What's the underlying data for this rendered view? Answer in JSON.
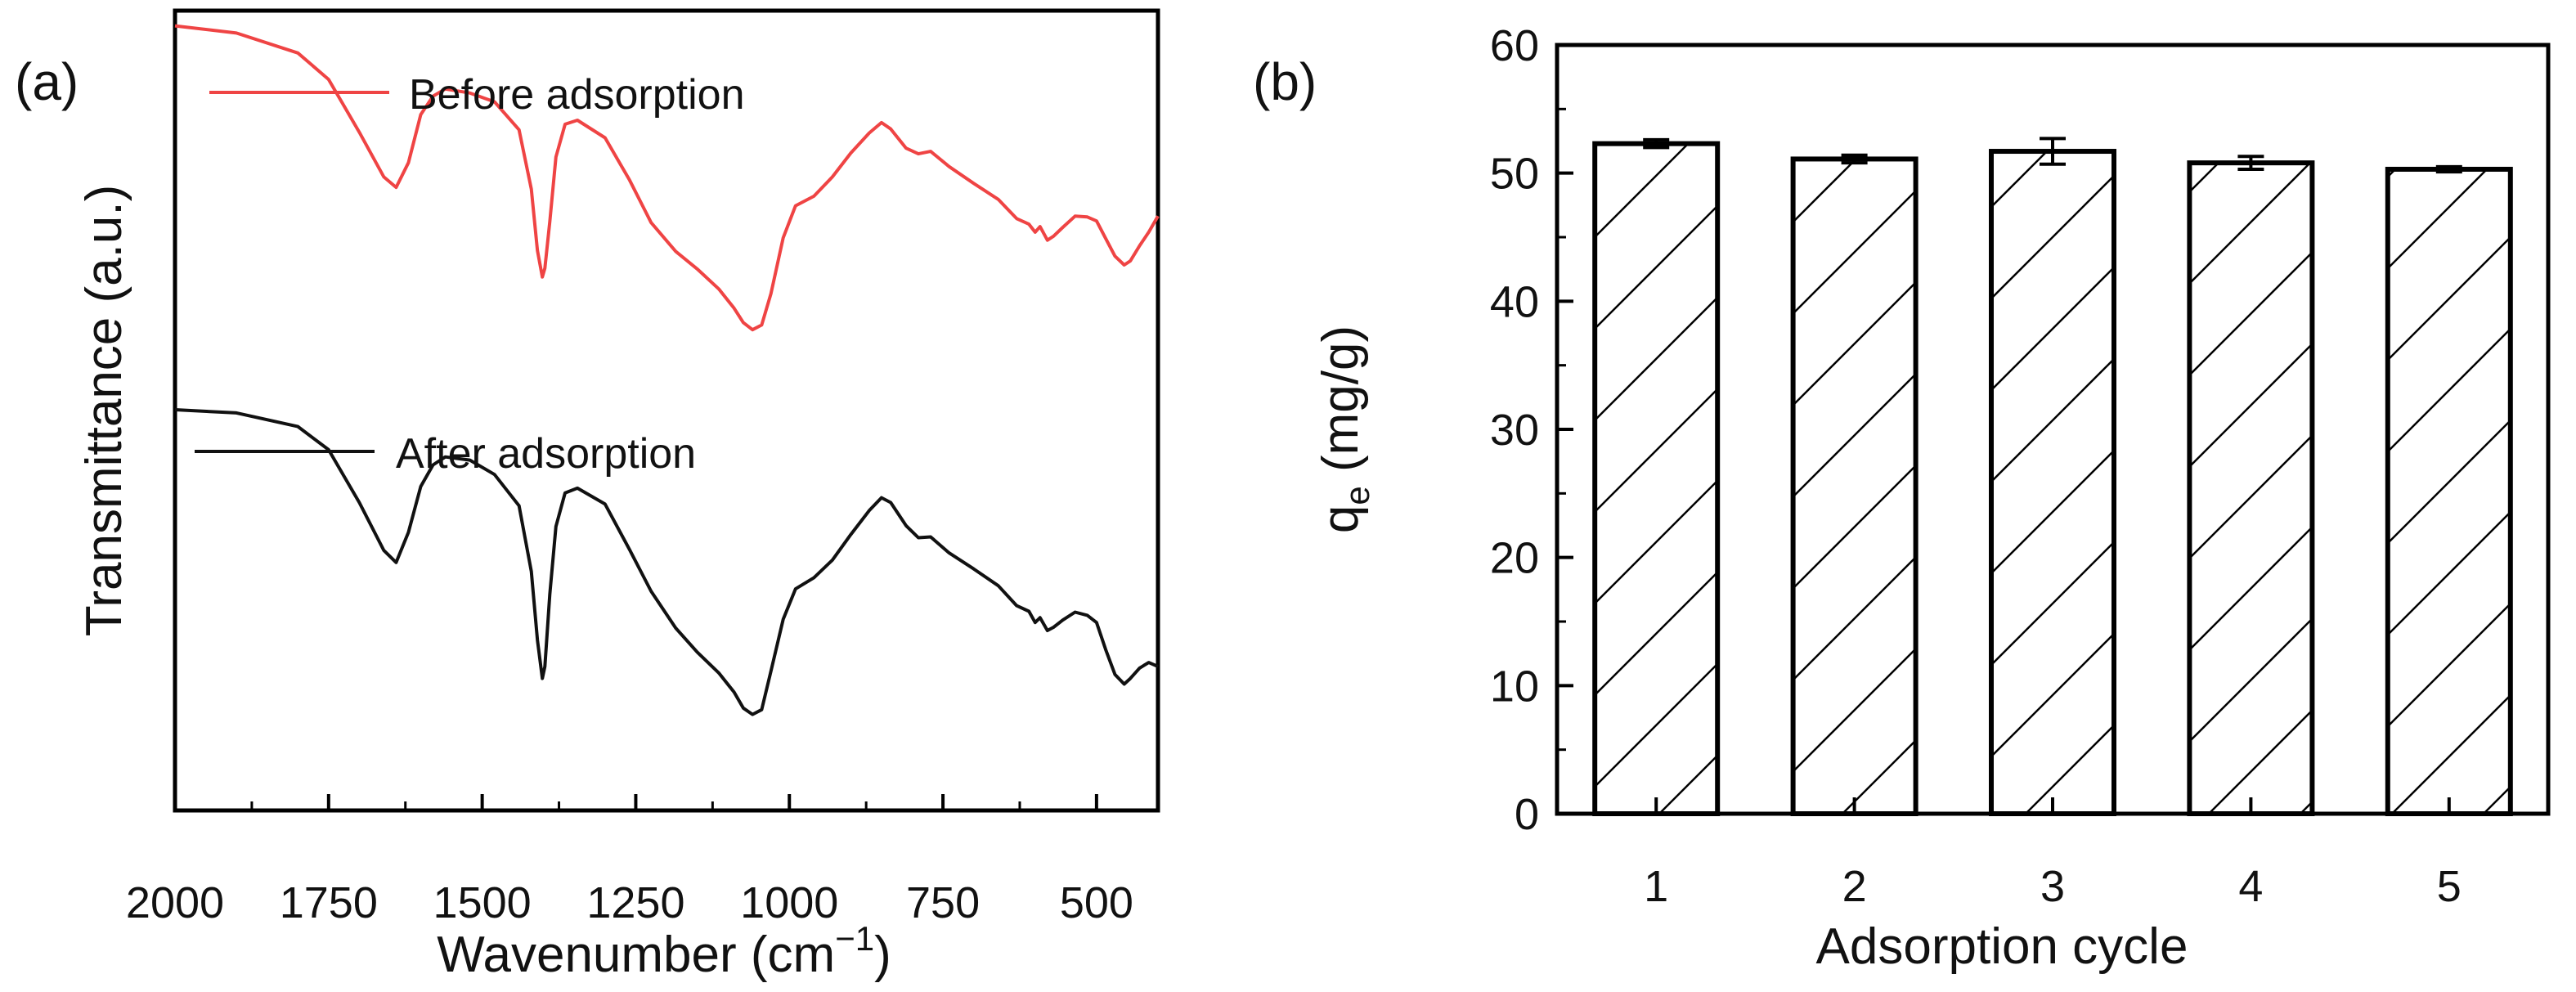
{
  "chart_data": [
    {
      "panel_label": "(a)",
      "type": "line",
      "xlabel_main": "Wavenumber (cm",
      "xlabel_sup": "−1",
      "xlabel_close": ")",
      "ylabel": "Transmittance (a.u.)",
      "xlim": [
        2000,
        400
      ],
      "x_reversed": true,
      "ylim": [
        0,
        1
      ],
      "y_ticks_shown": false,
      "x_ticks": [
        2000,
        1750,
        1500,
        1250,
        1000,
        750,
        500
      ],
      "series": [
        {
          "name": "Before adsorption",
          "color": "#ef4444",
          "points": [
            [
              2000,
              0.981
            ],
            [
              1900,
              0.972
            ],
            [
              1800,
              0.947
            ],
            [
              1750,
              0.914
            ],
            [
              1700,
              0.848
            ],
            [
              1660,
              0.792
            ],
            [
              1640,
              0.779
            ],
            [
              1620,
              0.81
            ],
            [
              1600,
              0.87
            ],
            [
              1580,
              0.893
            ],
            [
              1560,
              0.902
            ],
            [
              1520,
              0.897
            ],
            [
              1480,
              0.886
            ],
            [
              1440,
              0.851
            ],
            [
              1420,
              0.777
            ],
            [
              1410,
              0.7
            ],
            [
              1402,
              0.667
            ],
            [
              1398,
              0.678
            ],
            [
              1390,
              0.736
            ],
            [
              1380,
              0.817
            ],
            [
              1365,
              0.858
            ],
            [
              1345,
              0.863
            ],
            [
              1300,
              0.841
            ],
            [
              1260,
              0.788
            ],
            [
              1225,
              0.735
            ],
            [
              1185,
              0.699
            ],
            [
              1150,
              0.677
            ],
            [
              1115,
              0.652
            ],
            [
              1090,
              0.628
            ],
            [
              1075,
              0.61
            ],
            [
              1060,
              0.601
            ],
            [
              1045,
              0.607
            ],
            [
              1030,
              0.646
            ],
            [
              1010,
              0.716
            ],
            [
              990,
              0.756
            ],
            [
              960,
              0.768
            ],
            [
              930,
              0.792
            ],
            [
              900,
              0.822
            ],
            [
              870,
              0.847
            ],
            [
              850,
              0.86
            ],
            [
              835,
              0.852
            ],
            [
              810,
              0.828
            ],
            [
              790,
              0.821
            ],
            [
              770,
              0.824
            ],
            [
              740,
              0.805
            ],
            [
              700,
              0.784
            ],
            [
              660,
              0.764
            ],
            [
              630,
              0.74
            ],
            [
              610,
              0.733
            ],
            [
              600,
              0.723
            ],
            [
              592,
              0.73
            ],
            [
              580,
              0.713
            ],
            [
              570,
              0.718
            ],
            [
              555,
              0.729
            ],
            [
              535,
              0.743
            ],
            [
              515,
              0.742
            ],
            [
              500,
              0.737
            ],
            [
              485,
              0.715
            ],
            [
              470,
              0.693
            ],
            [
              455,
              0.682
            ],
            [
              445,
              0.687
            ],
            [
              430,
              0.706
            ],
            [
              415,
              0.723
            ],
            [
              400,
              0.743
            ]
          ]
        },
        {
          "name": "After adsorption",
          "color": "#111111",
          "points": [
            [
              2000,
              0.501
            ],
            [
              1900,
              0.497
            ],
            [
              1800,
              0.48
            ],
            [
              1750,
              0.451
            ],
            [
              1700,
              0.385
            ],
            [
              1660,
              0.325
            ],
            [
              1640,
              0.31
            ],
            [
              1620,
              0.348
            ],
            [
              1600,
              0.405
            ],
            [
              1580,
              0.432
            ],
            [
              1560,
              0.442
            ],
            [
              1520,
              0.438
            ],
            [
              1480,
              0.42
            ],
            [
              1440,
              0.381
            ],
            [
              1420,
              0.299
            ],
            [
              1410,
              0.213
            ],
            [
              1402,
              0.165
            ],
            [
              1398,
              0.18
            ],
            [
              1390,
              0.27
            ],
            [
              1380,
              0.355
            ],
            [
              1365,
              0.397
            ],
            [
              1345,
              0.403
            ],
            [
              1300,
              0.383
            ],
            [
              1260,
              0.326
            ],
            [
              1225,
              0.274
            ],
            [
              1185,
              0.228
            ],
            [
              1150,
              0.198
            ],
            [
              1115,
              0.172
            ],
            [
              1090,
              0.148
            ],
            [
              1075,
              0.128
            ],
            [
              1060,
              0.12
            ],
            [
              1045,
              0.126
            ],
            [
              1030,
              0.174
            ],
            [
              1010,
              0.239
            ],
            [
              990,
              0.277
            ],
            [
              960,
              0.291
            ],
            [
              930,
              0.313
            ],
            [
              900,
              0.345
            ],
            [
              870,
              0.375
            ],
            [
              850,
              0.391
            ],
            [
              835,
              0.385
            ],
            [
              810,
              0.356
            ],
            [
              790,
              0.341
            ],
            [
              770,
              0.342
            ],
            [
              740,
              0.322
            ],
            [
              700,
              0.302
            ],
            [
              660,
              0.281
            ],
            [
              630,
              0.256
            ],
            [
              610,
              0.249
            ],
            [
              600,
              0.235
            ],
            [
              592,
              0.241
            ],
            [
              580,
              0.225
            ],
            [
              570,
              0.229
            ],
            [
              555,
              0.238
            ],
            [
              535,
              0.248
            ],
            [
              515,
              0.244
            ],
            [
              500,
              0.235
            ],
            [
              485,
              0.201
            ],
            [
              470,
              0.17
            ],
            [
              455,
              0.158
            ],
            [
              445,
              0.165
            ],
            [
              430,
              0.178
            ],
            [
              415,
              0.185
            ],
            [
              400,
              0.18
            ]
          ]
        }
      ]
    },
    {
      "panel_label": "(b)",
      "type": "bar",
      "xlabel": "Adsorption cycle",
      "ylabel_main": "q",
      "ylabel_sub": "e",
      "ylabel_unit": " (mg/g)",
      "categories": [
        "1",
        "2",
        "3",
        "4",
        "5"
      ],
      "values": [
        52.3,
        51.1,
        51.7,
        50.8,
        50.3
      ],
      "errors": [
        0.3,
        0.3,
        1.0,
        0.5,
        0.2
      ],
      "ylim": [
        0,
        60
      ],
      "y_ticks": [
        0,
        10,
        20,
        30,
        40,
        50,
        60
      ],
      "bar_fill": "hatched",
      "bar_color": "#000000"
    }
  ]
}
